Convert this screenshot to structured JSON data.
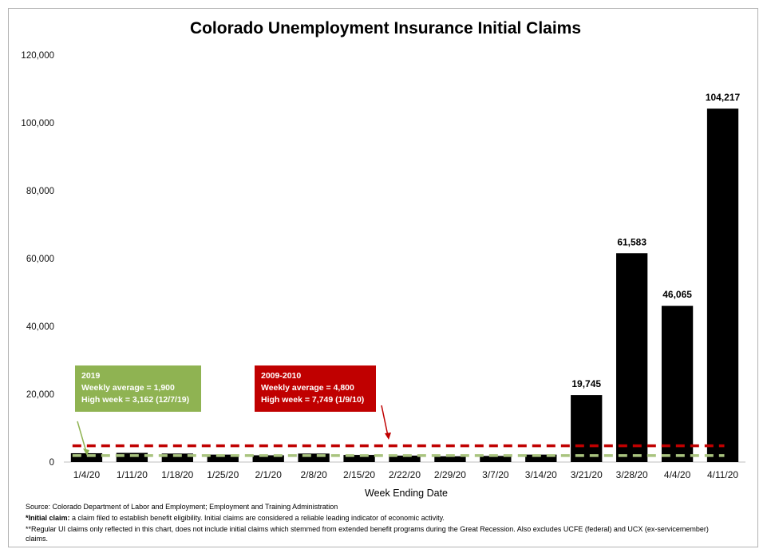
{
  "chart_data": {
    "type": "bar",
    "title": "Colorado Unemployment Insurance Initial Claims",
    "xlabel": "Week Ending Date",
    "ylabel": "",
    "ylim": [
      0,
      120000
    ],
    "yticks": [
      0,
      20000,
      40000,
      60000,
      80000,
      100000,
      120000
    ],
    "ytick_labels": [
      "0",
      "20,000",
      "40,000",
      "60,000",
      "80,000",
      "100,000",
      "120,000"
    ],
    "categories": [
      "1/4/20",
      "1/11/20",
      "1/18/20",
      "1/25/20",
      "2/1/20",
      "2/8/20",
      "2/15/20",
      "2/22/20",
      "2/29/20",
      "3/7/20",
      "3/14/20",
      "3/21/20",
      "3/28/20",
      "4/4/20",
      "4/11/20"
    ],
    "values": [
      2600,
      2700,
      2500,
      2200,
      2000,
      2500,
      2100,
      1900,
      1700,
      1800,
      2200,
      19745,
      61583,
      46065,
      104217
    ],
    "data_labels": [
      "",
      "",
      "",
      "",
      "",
      "",
      "",
      "",
      "",
      "",
      "",
      "19,745",
      "61,583",
      "46,065",
      "104,217"
    ],
    "bar_color": "#000000",
    "reference_lines": [
      {
        "name": "2009-2010 weekly average",
        "value": 4800,
        "color": "#c00000",
        "style": "dashed"
      },
      {
        "name": "2019 weekly average",
        "value": 1900,
        "color": "#a9c47f",
        "style": "dashed"
      }
    ],
    "annotations": [
      {
        "title": "2019",
        "lines": [
          "Weekly average = 1,900",
          "High week = 3,162 (12/7/19)"
        ],
        "color": "#8fb352"
      },
      {
        "title": "2009-2010",
        "lines": [
          "Weekly average = 4,800",
          "High week = 7,749 (1/9/10)"
        ],
        "color": "#c00000"
      }
    ]
  },
  "footer": {
    "source": "Source: Colorado Department of Labor and Employment; Employment and Training Administration",
    "note1_bold": "*Initial claim:",
    "note1_text": " a claim filed to establish benefit eligibility. Initial claims are considered a reliable leading indicator of economic activity.",
    "note2": "**Regular UI claims only reflected in this chart, does not include initial claims which stemmed from extended benefit programs during the Great Recession. Also excludes UCFE (federal) and UCX (ex-servicemember) claims."
  },
  "colors": {
    "green_box": "#8fb352",
    "red_box": "#c00000",
    "green_line": "#a9c47f",
    "red_line": "#c00000"
  }
}
